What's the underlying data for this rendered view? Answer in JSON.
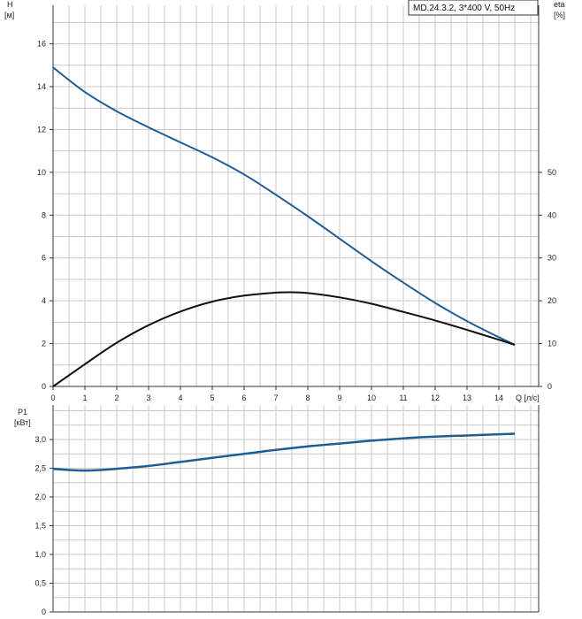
{
  "legend": {
    "text": "MD.24.3.2, 3*400 V, 50Hz"
  },
  "colors": {
    "head": "#1f5d96",
    "eta": "#111111",
    "power": "#1f5d96",
    "grid": "#c8c8c8",
    "axis": "#333333"
  },
  "chart_data": [
    {
      "type": "line",
      "grid": true,
      "xlabel": "Q [л/с]",
      "xlim": [
        0,
        15.25
      ],
      "x_ticks": [
        0,
        1,
        2,
        3,
        4,
        5,
        6,
        7,
        8,
        9,
        10,
        11,
        12,
        13,
        14
      ],
      "y_axes": [
        {
          "label_line1": "H",
          "label_line2": "[м]",
          "side": "left",
          "ylim": [
            0,
            17.8
          ],
          "ticks": [
            0,
            2,
            4,
            6,
            8,
            10,
            12,
            14,
            16
          ]
        },
        {
          "label_line1": "eta",
          "label_line2": "[%]",
          "side": "right",
          "ylim": [
            0,
            89
          ],
          "ticks": [
            0,
            10,
            20,
            30,
            40,
            50
          ]
        }
      ],
      "series": [
        {
          "axis": "left",
          "x": [
            0,
            1,
            2,
            3,
            4,
            5,
            6,
            7,
            8,
            9,
            10,
            11,
            12,
            13,
            14,
            14.5
          ],
          "values": [
            14.9,
            13.75,
            12.85,
            12.1,
            11.4,
            10.7,
            9.9,
            8.95,
            7.95,
            6.9,
            5.85,
            4.85,
            3.9,
            3.05,
            2.3,
            1.95
          ]
        },
        {
          "axis": "right",
          "x": [
            0,
            1,
            2,
            3,
            4,
            5,
            6,
            7,
            7.5,
            8,
            9,
            10,
            11,
            12,
            13,
            14,
            14.5
          ],
          "values": [
            0,
            5.2,
            10.2,
            14.3,
            17.5,
            19.8,
            21.2,
            21.9,
            22.0,
            21.8,
            20.8,
            19.3,
            17.4,
            15.4,
            13.2,
            10.9,
            9.7
          ]
        }
      ]
    },
    {
      "type": "line",
      "grid": true,
      "xlim": [
        0,
        15.25
      ],
      "ylabel_line1": "P1",
      "ylabel_line2": "[кВт]",
      "ylim": [
        0,
        3.6
      ],
      "y_ticks": [
        "0",
        "0,5",
        "1,0",
        "1,5",
        "2,0",
        "2,5",
        "3,0"
      ],
      "series": [
        {
          "x": [
            0,
            0.5,
            1,
            1.5,
            2,
            3,
            4,
            5,
            6,
            7,
            8,
            9,
            10,
            11,
            12,
            13,
            14,
            14.5
          ],
          "values": [
            2.49,
            2.47,
            2.46,
            2.47,
            2.49,
            2.54,
            2.61,
            2.68,
            2.75,
            2.82,
            2.88,
            2.93,
            2.98,
            3.02,
            3.05,
            3.07,
            3.09,
            3.1
          ]
        }
      ]
    }
  ]
}
